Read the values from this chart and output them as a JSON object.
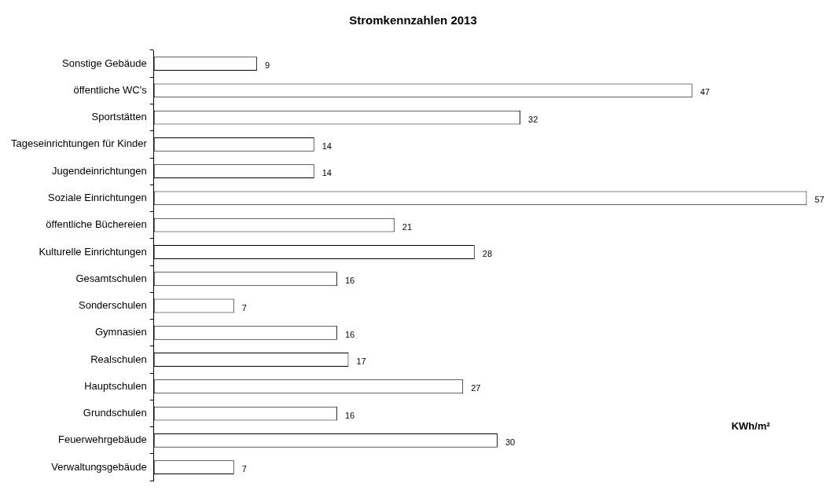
{
  "chart_data": {
    "type": "bar",
    "orientation": "horizontal",
    "title": "Stromkennzahlen 2013",
    "categories": [
      "Sonstige Gebäude",
      "öffentliche WC's",
      "Sportstätten",
      "Tageseinrichtungen für Kinder",
      "Jugendeinrichtungen",
      "Soziale Einrichtungen",
      "öffentliche Büchereien",
      "Kulturelle Einrichtungen",
      "Gesamtschulen",
      "Sonderschulen",
      "Gymnasien",
      "Realschulen",
      "Hauptschulen",
      "Grundschulen",
      "Feuerwehrgebäude",
      "Verwaltungsgebäude"
    ],
    "values": [
      9,
      47,
      32,
      14,
      14,
      57,
      21,
      28,
      16,
      7,
      16,
      17,
      27,
      16,
      30,
      7
    ],
    "color": "#ffffff",
    "data_labels": true,
    "legend": false,
    "tick_labels": "y",
    "annotations": [
      "KWh/m²"
    ]
  }
}
